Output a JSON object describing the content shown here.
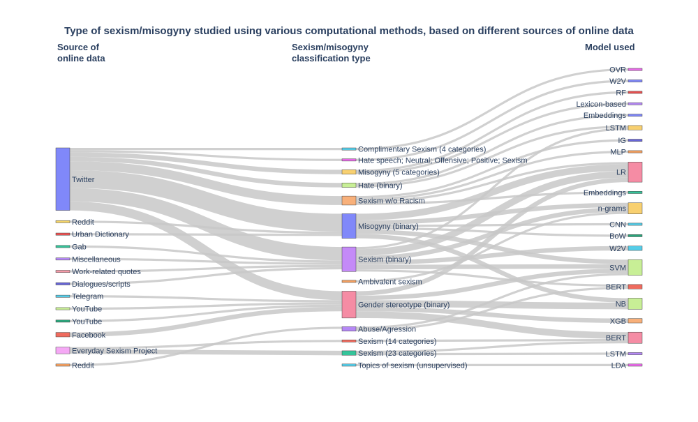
{
  "title": "Type of sexism/misogyny studied using various computational methods, based on different sources of online data",
  "column_headers": {
    "source": "Source of\nonline data",
    "classification": "Sexism/misogyny\nclassification type",
    "model": "Model used"
  },
  "colors": {
    "link": "#c8c8c8",
    "node_stroke": "#444444"
  },
  "nodes": {
    "sources": [
      {
        "id": "twitter",
        "label": "Twitter",
        "color": "#8088f9"
      },
      {
        "id": "reddit1",
        "label": "Reddit",
        "color": "#f4d468"
      },
      {
        "id": "urban",
        "label": "Urban Dictionary",
        "color": "#e85050"
      },
      {
        "id": "gab",
        "label": "Gab",
        "color": "#35c49a"
      },
      {
        "id": "misc",
        "label": "Miscellaneous",
        "color": "#b588f5"
      },
      {
        "id": "work",
        "label": "Work-related quotes",
        "color": "#f59aa8"
      },
      {
        "id": "dialogues",
        "label": "Dialogues/scripts",
        "color": "#6866d8"
      },
      {
        "id": "telegram",
        "label": "Telegram",
        "color": "#55cde8"
      },
      {
        "id": "youtube1",
        "label": "YouTube",
        "color": "#c8ef96"
      },
      {
        "id": "youtube2",
        "label": "YouTube",
        "color": "#2aa47a"
      },
      {
        "id": "facebook",
        "label": "Facebook",
        "color": "#ef6b5e"
      },
      {
        "id": "everyday",
        "label": "Everyday Sexism Project",
        "color": "#f5a8f5"
      },
      {
        "id": "reddit2",
        "label": "Reddit",
        "color": "#f4a060"
      }
    ],
    "classifications": [
      {
        "id": "compl",
        "label": "Complimentary Sexism (4 categories)",
        "color": "#55cde8"
      },
      {
        "id": "hate6",
        "label": "Hate speech;  Neutral; Offensive; Positive; Sexism",
        "color": "#e86ae8"
      },
      {
        "id": "miso5",
        "label": "Misogyny (5 categories)",
        "color": "#f8d070"
      },
      {
        "id": "hatebin",
        "label": "Hate (binary)",
        "color": "#c8ef96"
      },
      {
        "id": "sexwo",
        "label": "Sexism w/o Racism",
        "color": "#f8b07a"
      },
      {
        "id": "misobin",
        "label": "Misogyny (binary)",
        "color": "#8088f9"
      },
      {
        "id": "sexbin",
        "label": "Sexism (binary)",
        "color": "#c48af7"
      },
      {
        "id": "ambiv",
        "label": "Ambivalent sexism",
        "color": "#f4a060"
      },
      {
        "id": "gender",
        "label": "Gender stereotype (binary)",
        "color": "#f58ca4"
      },
      {
        "id": "abuse",
        "label": "Abuse/Agression",
        "color": "#b588f5"
      },
      {
        "id": "sex14",
        "label": "Sexism (14 categories)",
        "color": "#ef6b5e"
      },
      {
        "id": "sex23",
        "label": "Sexism (23 categories)",
        "color": "#35c49a"
      },
      {
        "id": "topics",
        "label": "Topics of sexism  (unsupervised)",
        "color": "#55cde8"
      }
    ],
    "models": [
      {
        "id": "ovr",
        "label": "OVR",
        "color": "#e86ae8"
      },
      {
        "id": "w2v1",
        "label": "W2V",
        "color": "#8088f9"
      },
      {
        "id": "rf",
        "label": "RF",
        "color": "#e85050"
      },
      {
        "id": "lex",
        "label": "Lexicon-based",
        "color": "#b588f5"
      },
      {
        "id": "emb1",
        "label": "Embeddings",
        "color": "#8088f9"
      },
      {
        "id": "lstm1",
        "label": "LSTM",
        "color": "#f8d070"
      },
      {
        "id": "ig",
        "label": "IG",
        "color": "#6866d8"
      },
      {
        "id": "mlp",
        "label": "MLP",
        "color": "#f4a060"
      },
      {
        "id": "lr",
        "label": "LR",
        "color": "#f58ca4"
      },
      {
        "id": "emb2",
        "label": "Embeddings",
        "color": "#35c49a"
      },
      {
        "id": "ngrams",
        "label": "n-grams",
        "color": "#f8d070"
      },
      {
        "id": "cnn",
        "label": "CNN",
        "color": "#55cde8"
      },
      {
        "id": "bow",
        "label": "BoW",
        "color": "#2aa47a"
      },
      {
        "id": "w2v2",
        "label": "W2V",
        "color": "#55cde8"
      },
      {
        "id": "svm",
        "label": "SVM",
        "color": "#c8ef96"
      },
      {
        "id": "bert1",
        "label": "BERT",
        "color": "#ef6b5e"
      },
      {
        "id": "nb",
        "label": "NB",
        "color": "#c8ef96"
      },
      {
        "id": "xgb",
        "label": "XGB",
        "color": "#f8b07a"
      },
      {
        "id": "bert2",
        "label": "BERT",
        "color": "#f58ca4"
      },
      {
        "id": "lstm2",
        "label": "LSTM",
        "color": "#b588f5"
      },
      {
        "id": "lda",
        "label": "LDA",
        "color": "#e86ae8"
      }
    ]
  },
  "links": [
    [
      "twitter",
      "compl",
      1
    ],
    [
      "twitter",
      "hate6",
      1
    ],
    [
      "twitter",
      "miso5",
      2
    ],
    [
      "twitter",
      "hatebin",
      2
    ],
    [
      "twitter",
      "sexwo",
      4
    ],
    [
      "twitter",
      "misobin",
      8
    ],
    [
      "twitter",
      "sexbin",
      6
    ],
    [
      "twitter",
      "gender",
      4
    ],
    [
      "reddit1",
      "misobin",
      1
    ],
    [
      "urban",
      "misobin",
      1
    ],
    [
      "gab",
      "sexbin",
      1
    ],
    [
      "misc",
      "sexbin",
      1
    ],
    [
      "work",
      "sexbin",
      1
    ],
    [
      "dialogues",
      "sexbin",
      1
    ],
    [
      "telegram",
      "gender",
      1
    ],
    [
      "youtube1",
      "gender",
      1
    ],
    [
      "youtube2",
      "gender",
      1
    ],
    [
      "facebook",
      "gender",
      2
    ],
    [
      "everyday",
      "sex14",
      1
    ],
    [
      "everyday",
      "sex23",
      2
    ],
    [
      "reddit2",
      "abuse",
      1
    ],
    [
      "compl",
      "ovr",
      1
    ],
    [
      "hate6",
      "w2v1",
      1
    ],
    [
      "miso5",
      "rf",
      1
    ],
    [
      "miso5",
      "lex",
      1
    ],
    [
      "hatebin",
      "emb1",
      1
    ],
    [
      "hatebin",
      "lstm1",
      1
    ],
    [
      "sexwo",
      "ig",
      1
    ],
    [
      "sexwo",
      "mlp",
      1
    ],
    [
      "sexwo",
      "lr",
      1
    ],
    [
      "sexwo",
      "emb2",
      1
    ],
    [
      "misobin",
      "lr",
      3
    ],
    [
      "misobin",
      "ngrams",
      2
    ],
    [
      "misobin",
      "cnn",
      1
    ],
    [
      "misobin",
      "bow",
      1
    ],
    [
      "misobin",
      "svm",
      2
    ],
    [
      "misobin",
      "nb",
      2
    ],
    [
      "sexbin",
      "lstm1",
      1
    ],
    [
      "sexbin",
      "lr",
      3
    ],
    [
      "sexbin",
      "ngrams",
      2
    ],
    [
      "sexbin",
      "w2v2",
      2
    ],
    [
      "sexbin",
      "svm",
      2
    ],
    [
      "sexbin",
      "bert1",
      1
    ],
    [
      "ambiv",
      "ngrams",
      1
    ],
    [
      "gender",
      "lr",
      2
    ],
    [
      "gender",
      "svm",
      2
    ],
    [
      "gender",
      "nb",
      3
    ],
    [
      "gender",
      "xgb",
      2
    ],
    [
      "gender",
      "bert2",
      3
    ],
    [
      "abuse",
      "bert1",
      1
    ],
    [
      "abuse",
      "svm",
      1
    ],
    [
      "sex14",
      "bert2",
      1
    ],
    [
      "sex23",
      "lstm2",
      1
    ],
    [
      "sex23",
      "bert2",
      1
    ],
    [
      "topics",
      "lda",
      1
    ]
  ]
}
